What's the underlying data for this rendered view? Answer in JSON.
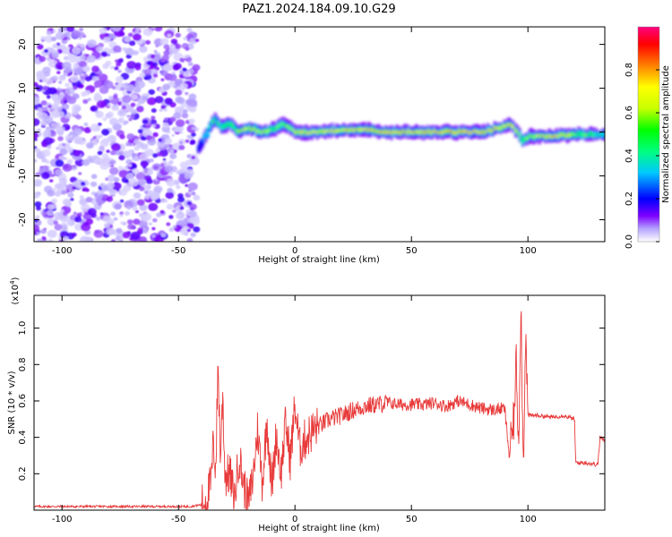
{
  "title": "PAZ1.2024.184.09.10.G29",
  "chart_data": [
    {
      "type": "heatmap",
      "xlabel": "Height of straight line (km)",
      "ylabel": "Frequency (Hz)",
      "xlim": [
        -112,
        133
      ],
      "ylim": [
        -25,
        24
      ],
      "xticks": [
        -100,
        -50,
        0,
        50,
        100
      ],
      "yticks": [
        -20,
        -10,
        0,
        10,
        20
      ],
      "noise_region": {
        "x": [
          -112,
          -42
        ],
        "y": [
          -25,
          24
        ]
      },
      "signal_ridge": {
        "x": [
          -42,
          -38,
          -35,
          -32,
          -28,
          -25,
          -20,
          -15,
          -10,
          -5,
          0,
          10,
          20,
          30,
          40,
          50,
          60,
          70,
          80,
          88,
          92,
          95,
          97,
          100,
          110,
          120,
          133
        ],
        "freq": [
          -4,
          0,
          3,
          1,
          2,
          0,
          1,
          0,
          0.5,
          2,
          0,
          0,
          0.5,
          0.5,
          0,
          0,
          0,
          0,
          0,
          1,
          2,
          0,
          -2,
          -1,
          -1,
          -0.5,
          -0.5
        ],
        "amplitude": [
          0.3,
          0.4,
          0.5,
          0.5,
          0.6,
          0.6,
          0.7,
          0.7,
          0.6,
          0.6,
          0.7,
          0.8,
          0.8,
          0.85,
          0.9,
          0.95,
          0.97,
          0.97,
          0.9,
          0.8,
          0.8,
          0.7,
          0.5,
          0.6,
          0.95,
          0.6,
          0.4
        ]
      },
      "colorbar": {
        "label": "Normalized spectral amplitude",
        "range": [
          0,
          1
        ],
        "ticks": [
          0.0,
          0.2,
          0.4,
          0.6,
          0.8
        ],
        "colors": [
          "#ffffff",
          "#b4a4ff",
          "#7e00ff",
          "#0000ff",
          "#00c8ff",
          "#00ff80",
          "#00ff00",
          "#c8ff00",
          "#ffff00",
          "#ff8000",
          "#ff0000",
          "#ff0080"
        ]
      }
    },
    {
      "type": "line",
      "xlabel": "Height of straight line (km)",
      "ylabel": "SNR (10 * v/v)",
      "exponent_label": "(x10",
      "exponent_power": "4",
      "exponent_close": ")",
      "xlim": [
        -112,
        133
      ],
      "ylim": [
        0,
        1.18
      ],
      "xticks": [
        -100,
        -50,
        0,
        50,
        100
      ],
      "yticks": [
        0.2,
        0.4,
        0.6,
        0.8,
        1.0
      ],
      "color": "#e83a3a",
      "series": [
        {
          "x": [
            -112,
            -100,
            -80,
            -60,
            -45,
            -40,
            -38,
            -36,
            -35,
            -34,
            -33,
            -32,
            -31,
            -30,
            -28,
            -26,
            -24,
            -22,
            -20,
            -18,
            -16,
            -14,
            -12,
            -10,
            -8,
            -6,
            -4,
            -2,
            0,
            2,
            5,
            8,
            10,
            15,
            20,
            25,
            30,
            35,
            40,
            45,
            50,
            55,
            60,
            65,
            70,
            75,
            80,
            85,
            90,
            92,
            94,
            95,
            96,
            97,
            98,
            99,
            100,
            105,
            110,
            115,
            120,
            120.5,
            125,
            130,
            131,
            133
          ],
          "y": [
            0.02,
            0.02,
            0.02,
            0.02,
            0.02,
            0.03,
            0.06,
            0.15,
            0.38,
            0.22,
            0.82,
            0.28,
            0.64,
            0.18,
            0.2,
            0.06,
            0.3,
            0.14,
            0.03,
            0.18,
            0.45,
            0.15,
            0.5,
            0.12,
            0.42,
            0.2,
            0.48,
            0.28,
            0.58,
            0.34,
            0.4,
            0.44,
            0.46,
            0.5,
            0.52,
            0.55,
            0.57,
            0.58,
            0.59,
            0.58,
            0.58,
            0.58,
            0.59,
            0.57,
            0.6,
            0.58,
            0.56,
            0.55,
            0.56,
            0.3,
            0.5,
            0.82,
            0.35,
            1.18,
            0.2,
            1.0,
            0.52,
            0.52,
            0.51,
            0.52,
            0.5,
            0.26,
            0.26,
            0.25,
            0.4,
            0.38
          ]
        }
      ]
    }
  ]
}
